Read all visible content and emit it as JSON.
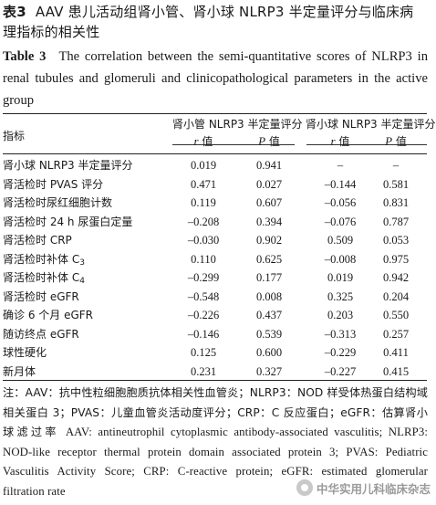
{
  "caption_cn": {
    "label": "表3",
    "title": "AAV 患儿活动组肾小管、肾小球 NLRP3 半定量评分与临床病理指标的相关性"
  },
  "caption_en": {
    "label": "Table 3",
    "title": "The correlation between the semi-quantitative scores of NLRP3 in renal tubules and glomeruli and clinicopathological parameters in the active group"
  },
  "table": {
    "col_index": "指标",
    "group1": "肾小管 NLRP3 半定量评分",
    "group2": "肾小球 NLRP3 半定量评分",
    "r_label": "r",
    "p_label": "P",
    "value_suffix": " 值",
    "rows": [
      {
        "name": "肾小球 NLRP3 半定量评分",
        "r1": "0.019",
        "p1": "0.941",
        "r2": "–",
        "p2": "–"
      },
      {
        "name": "肾活检时 PVAS 评分",
        "r1": "0.471",
        "p1": "0.027",
        "r2": "–0.144",
        "p2": "0.581"
      },
      {
        "name": "肾活检时尿红细胞计数",
        "r1": "0.119",
        "p1": "0.607",
        "r2": "–0.056",
        "p2": "0.831"
      },
      {
        "name": "肾活检时 24 h 尿蛋白定量",
        "r1": "–0.208",
        "p1": "0.394",
        "r2": "–0.076",
        "p2": "0.787"
      },
      {
        "name": "肾活检时 CRP",
        "r1": "–0.030",
        "p1": "0.902",
        "r2": "0.509",
        "p2": "0.053"
      },
      {
        "name": "肾活检时补体 C",
        "sub": "3",
        "r1": "0.110",
        "p1": "0.625",
        "r2": "–0.008",
        "p2": "0.975"
      },
      {
        "name": "肾活检时补体 C",
        "sub": "4",
        "r1": "–0.299",
        "p1": "0.177",
        "r2": "0.019",
        "p2": "0.942"
      },
      {
        "name": "肾活检时 eGFR",
        "r1": "–0.548",
        "p1": "0.008",
        "r2": "0.325",
        "p2": "0.204"
      },
      {
        "name": "确诊 6 个月 eGFR",
        "r1": "–0.226",
        "p1": "0.437",
        "r2": "0.203",
        "p2": "0.550"
      },
      {
        "name": "随访终点 eGFR",
        "r1": "–0.146",
        "p1": "0.539",
        "r2": "–0.313",
        "p2": "0.257"
      },
      {
        "name": "球性硬化",
        "r1": "0.125",
        "p1": "0.600",
        "r2": "–0.229",
        "p2": "0.411"
      },
      {
        "name": "新月体",
        "r1": "0.231",
        "p1": "0.327",
        "r2": "–0.227",
        "p2": "0.415"
      }
    ]
  },
  "note": {
    "cn": "注：AAV：抗中性粒细胞胞质抗体相关性血管炎；NLRP3：NOD 样受体热蛋白结构域相关蛋白 3；PVAS：儿童血管炎活动度评分；CRP：C 反应蛋白；eGFR：估算肾小球滤过率",
    "en": "AAV: antineutrophil cytoplasmic antibody-associated vasculitis; NLRP3: NOD-like receptor thermal protein domain associated protein 3; PVAS: Pediatric Vasculitis Activity Score; CRP: C-reactive protein; eGFR: estimated glomerular filtration rate"
  },
  "watermark": {
    "text": "中华实用儿科临床杂志"
  }
}
